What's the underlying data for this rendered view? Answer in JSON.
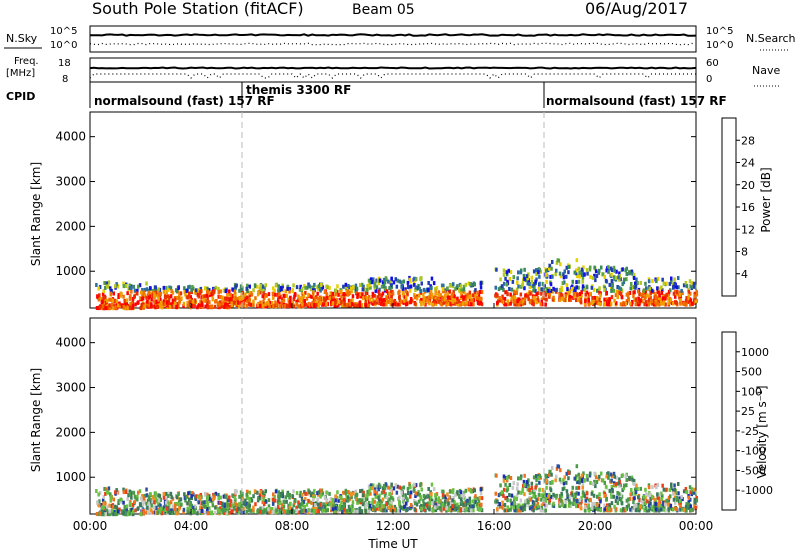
{
  "header": {
    "station": "South Pole Station (fitACF)",
    "beam": "Beam 05",
    "date": "06/Aug/2017"
  },
  "noise_panel": {
    "left_label": "N.Sky",
    "left_ticks": [
      "10^5",
      "10^0"
    ],
    "right_label": "N.Search",
    "right_ticks": [
      "10^5",
      "10^0"
    ]
  },
  "freq_panel": {
    "left_label_1": "Freq.",
    "left_label_2": "[MHz]",
    "left_ticks": [
      "18",
      "8"
    ],
    "right_label": "Nave",
    "right_ticks": [
      "60",
      "0"
    ]
  },
  "cpid": {
    "label": "CPID",
    "segments": [
      {
        "text": "normalsound (fast) 157 RF",
        "start_h": 0
      },
      {
        "text": "themis 3300 RF",
        "start_h": 6
      },
      {
        "text": "normalsound (fast) 157 RF",
        "start_h": 18
      }
    ]
  },
  "chart_data": [
    {
      "type": "heatmap",
      "name": "power",
      "xlabel": "",
      "ylabel": "Slant Range [km]",
      "xlim_hours": [
        0,
        24
      ],
      "ylim": [
        180,
        4550
      ],
      "yticks": [
        1000,
        2000,
        3000,
        4000
      ],
      "xticks": [
        "00:00",
        "04:00",
        "08:00",
        "12:00",
        "16:00",
        "20:00",
        "00:00"
      ],
      "dashed_hours": [
        6,
        18
      ],
      "colorbar": {
        "label": "Power [dB]",
        "ticks": [
          "4",
          "8",
          "12",
          "16",
          "20",
          "24",
          "28"
        ],
        "colors": [
          "#1010e0",
          "#2040b0",
          "#2e6e9e",
          "#3a8a5a",
          "#5aa040",
          "#b4c820",
          "#e8d000",
          "#f0a000",
          "#f07000",
          "#e83000",
          "#ff0000"
        ]
      }
    },
    {
      "type": "heatmap",
      "name": "velocity",
      "xlabel": "Time UT",
      "ylabel": "Slant Range [km]",
      "xlim_hours": [
        0,
        24
      ],
      "ylim": [
        180,
        4550
      ],
      "yticks": [
        1000,
        2000,
        3000,
        4000
      ],
      "xticks": [
        "00:00",
        "04:00",
        "08:00",
        "12:00",
        "16:00",
        "20:00",
        "00:00"
      ],
      "dashed_hours": [
        6,
        18
      ],
      "colorbar": {
        "label": "Velocity [m s⁻¹]",
        "ticks": [
          "1000",
          "500",
          "100",
          "25",
          "-25",
          "-100",
          "-500",
          "-1000"
        ],
        "colors": [
          "#1a2fb0",
          "#2a4fa0",
          "#3a7a5a",
          "#4a9a4a",
          "#6ac040",
          "#c8c8c8",
          "#f0c030",
          "#f09020",
          "#f07020",
          "#e84018",
          "#e81010"
        ]
      }
    }
  ]
}
